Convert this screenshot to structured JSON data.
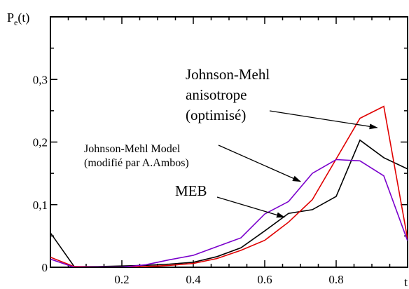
{
  "chart_data": {
    "type": "line",
    "ylabel": {
      "main": "P",
      "sub": "e",
      "suffix": "(t)"
    },
    "xlabel": "t",
    "xlim": [
      0,
      1
    ],
    "ylim": [
      0,
      0.4
    ],
    "xticks": [
      0.2,
      0.4,
      0.6,
      0.8
    ],
    "xtick_labels": [
      "0.2",
      "0.4",
      "0.6",
      "0.8"
    ],
    "yticks": [
      0,
      0.1,
      0.2,
      0.3
    ],
    "ytick_labels": [
      "0",
      "0,1",
      "0,2",
      "0,3"
    ],
    "grid": false,
    "series": [
      {
        "color": "#000000",
        "x": [
          0,
          0.0667,
          0.1333,
          0.2,
          0.2667,
          0.3333,
          0.4,
          0.4667,
          0.5333,
          0.6,
          0.6667,
          0.7333,
          0.8,
          0.8667,
          0.9333,
          1.0
        ],
        "values": [
          0.055,
          0.001,
          0.001,
          0.002,
          0.003,
          0.005,
          0.008,
          0.017,
          0.031,
          0.058,
          0.086,
          0.092,
          0.113,
          0.203,
          0.175,
          0.157
        ]
      },
      {
        "color": "#e00000",
        "x": [
          0,
          0.0667,
          0.1333,
          0.2,
          0.2667,
          0.3333,
          0.4,
          0.4667,
          0.5333,
          0.6,
          0.6667,
          0.7333,
          0.8,
          0.8667,
          0.9333,
          1.0
        ],
        "values": [
          0.016,
          0.001,
          0.0,
          0.0,
          0.001,
          0.003,
          0.006,
          0.014,
          0.027,
          0.043,
          0.072,
          0.108,
          0.173,
          0.238,
          0.257,
          0.045
        ]
      },
      {
        "color": "#7a00cc",
        "x": [
          0,
          0.0667,
          0.1333,
          0.2,
          0.2667,
          0.3333,
          0.4,
          0.4667,
          0.5333,
          0.6,
          0.6667,
          0.7333,
          0.8,
          0.8667,
          0.9333,
          1.0
        ],
        "values": [
          0.013,
          0.0,
          0.0,
          0.0,
          0.004,
          0.012,
          0.019,
          0.033,
          0.047,
          0.085,
          0.105,
          0.15,
          0.172,
          0.17,
          0.146,
          0.042
        ]
      }
    ],
    "annotations": [
      {
        "lines": [
          "Johnson-Mehl",
          "anisotrope",
          "(optimisé)"
        ],
        "style": "big",
        "target_series": 1,
        "target": [
          0.915,
          0.223
        ]
      },
      {
        "lines": [
          "Johnson-Mehl Model",
          "(modifié par A.Ambos)"
        ],
        "style": "medium",
        "target_series": 2,
        "target": [
          0.7,
          0.137
        ]
      },
      {
        "lines": [
          "MEB"
        ],
        "style": "big",
        "target_series": 0,
        "target": [
          0.655,
          0.08
        ]
      }
    ]
  }
}
